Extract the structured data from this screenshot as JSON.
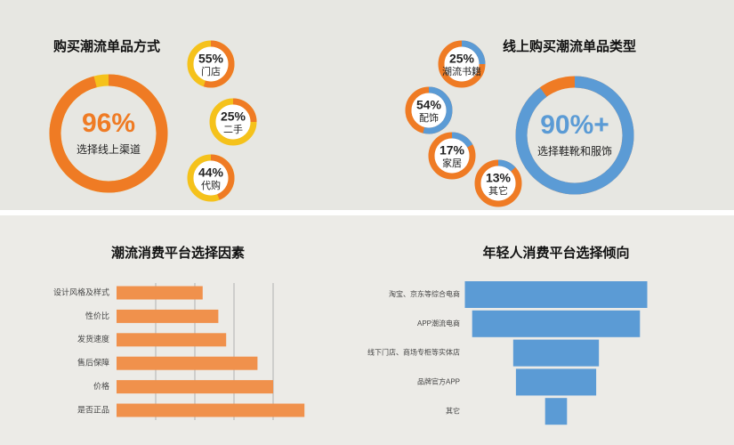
{
  "chart_data": [
    {
      "type": "donut",
      "title": "购买潮流单品方式",
      "color": "#ef7b24",
      "rest_color": "#f5c21b",
      "items": [
        {
          "name": "选择线上渠道",
          "value": 96,
          "value_label": "96%"
        },
        {
          "name": "门店",
          "value": 55,
          "value_label": "55%"
        },
        {
          "name": "二手",
          "value": 25,
          "value_label": "25%"
        },
        {
          "name": "代购",
          "value": 44,
          "value_label": "44%"
        }
      ]
    },
    {
      "type": "donut",
      "title": "线上购买潮流单品类型",
      "color": "#5b9bd5",
      "rest_color": "#ef7b24",
      "items": [
        {
          "name": "选择鞋靴和服饰",
          "value": 90,
          "value_label": "90%+"
        },
        {
          "name": "潮流书籍",
          "value": 25,
          "value_label": "25%"
        },
        {
          "name": "配饰",
          "value": 54,
          "value_label": "54%"
        },
        {
          "name": "家居",
          "value": 17,
          "value_label": "17%"
        },
        {
          "name": "其它",
          "value": 13,
          "value_label": "13%"
        }
      ]
    },
    {
      "type": "hbar",
      "title": "潮流消费平台选择因素",
      "color": "#f0914c",
      "categories": [
        "设计风格及样式",
        "性价比",
        "发货速度",
        "售后保障",
        "价格",
        "是否正品"
      ],
      "values": [
        2.2,
        2.6,
        2.8,
        3.6,
        4.0,
        4.8
      ],
      "xlim": [
        0,
        5
      ],
      "xticks": [
        1,
        2,
        3,
        4
      ],
      "grid": true
    },
    {
      "type": "funnel",
      "title": "年轻人消费平台选择倾向",
      "color": "#5b9bd5",
      "categories": [
        "淘宝、京东等综合电商",
        "APP潮流电商",
        "线下门店、商场专柜等实体店",
        "品牌官方APP",
        "其它"
      ],
      "values": [
        100,
        92,
        47,
        44,
        12
      ],
      "xlim": [
        0,
        100
      ]
    }
  ]
}
